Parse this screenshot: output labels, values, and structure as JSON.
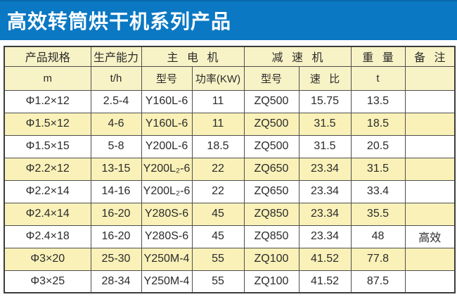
{
  "title": "高效转筒烘干机系列产品",
  "theme": {
    "banner_blue": "#0a78c3",
    "banner_blue_dark": "#0868ab",
    "title_color": "#ffffff",
    "header_cream": "#f8f3c6",
    "row_cream": "#f9f1b8",
    "row_white": "#ffffff",
    "border_dark": "#3c3c3c",
    "border_mid": "#4f4f4f",
    "text_dark": "#2b2b2b"
  },
  "table": {
    "header": {
      "spec": "产品规格",
      "capacity": "生产能力",
      "motor_group": "主 电 机",
      "reducer_group": "减 速 机",
      "weight": "重 量",
      "remark": "备 注",
      "spec_unit": "m",
      "capacity_unit": "t/h",
      "motor_model": "型号",
      "motor_power": "功率(KW)",
      "reducer_model": "型号",
      "reducer_ratio": "速 比",
      "weight_unit": "t",
      "remark_unit": ""
    },
    "column_keys": [
      "spec",
      "capacity",
      "motor-model",
      "motor-power",
      "reducer-model",
      "speed-ratio",
      "weight",
      "remark"
    ],
    "rows": [
      [
        "Φ1.2×12",
        "2.5-4",
        "Y160L-6",
        "11",
        "ZQ500",
        "15.75",
        "13.5",
        ""
      ],
      [
        "Φ1.5×12",
        "4-6",
        "Y160L-6",
        "11",
        "ZQ500",
        "31.5",
        "18.5",
        ""
      ],
      [
        "Φ1.5×15",
        "5-8",
        "Y200L-6",
        "18.5",
        "ZQ500",
        "31.5",
        "20.5",
        ""
      ],
      [
        "Φ2.2×12",
        "13-15",
        "Y200L₂-6",
        "22",
        "ZQ650",
        "23.34",
        "31.5",
        ""
      ],
      [
        "Φ2.2×14",
        "14-16",
        "Y200L₂-6",
        "22",
        "ZQ650",
        "23.34",
        "33.4",
        ""
      ],
      [
        "Φ2.4×14",
        "16-20",
        "Y280S-6",
        "45",
        "ZQ850",
        "23.34",
        "35.5",
        ""
      ],
      [
        "Φ2.4×18",
        "16-20",
        "Y280S-6",
        "45",
        "ZQ850",
        "23.34",
        "48",
        "高效"
      ],
      [
        "Φ3×20",
        "25-30",
        "Y250M-4",
        "55",
        "ZQ100",
        "41.52",
        "77.8",
        ""
      ],
      [
        "Φ3×25",
        "28-34",
        "Y250M-4",
        "55",
        "ZQ100",
        "41.52",
        "87.5",
        ""
      ]
    ]
  }
}
